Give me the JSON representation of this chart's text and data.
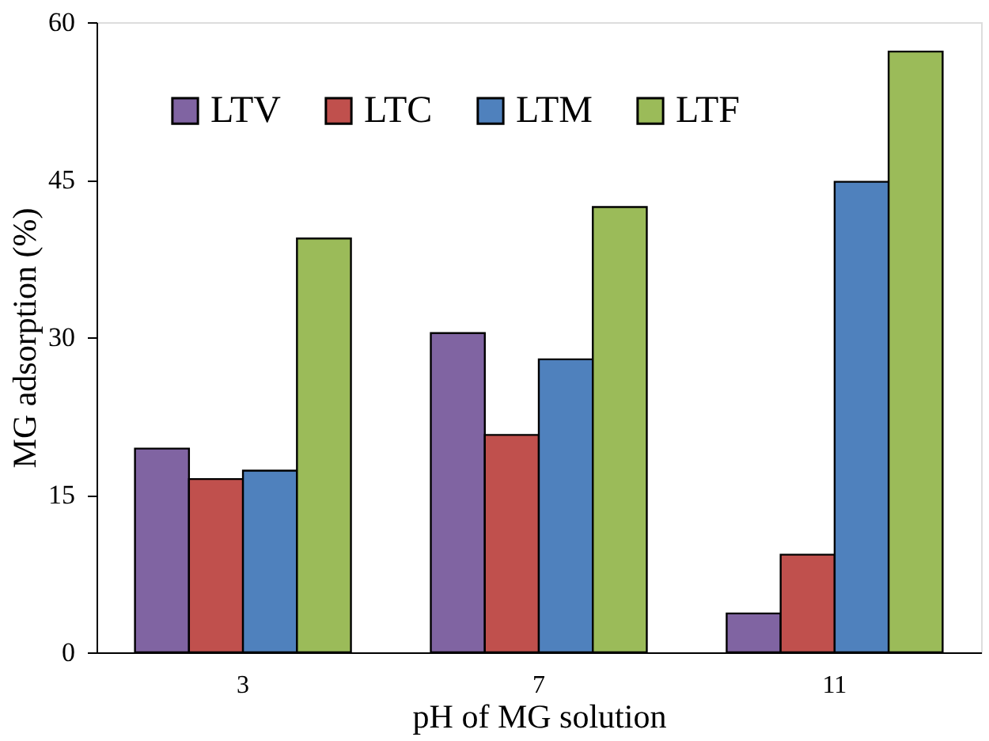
{
  "chart_data": {
    "type": "bar",
    "xlabel": "pH of MG solution",
    "ylabel": "MG adsorption (%)",
    "categories": [
      "3",
      "7",
      "11"
    ],
    "series": [
      {
        "name": "LTV",
        "color": "#8064a2",
        "values": [
          19.4,
          30.4,
          3.7
        ]
      },
      {
        "name": "LTC",
        "color": "#c0504d",
        "values": [
          16.5,
          20.7,
          9.3
        ]
      },
      {
        "name": "LTM",
        "color": "#4f81bd",
        "values": [
          17.3,
          27.9,
          44.8
        ]
      },
      {
        "name": "LTF",
        "color": "#9bbb59",
        "values": [
          39.4,
          42.4,
          57.2
        ]
      }
    ],
    "ylim": [
      0,
      60
    ],
    "yticks": [
      0,
      15,
      30,
      45,
      60
    ],
    "grid": false,
    "legend": "top left"
  }
}
